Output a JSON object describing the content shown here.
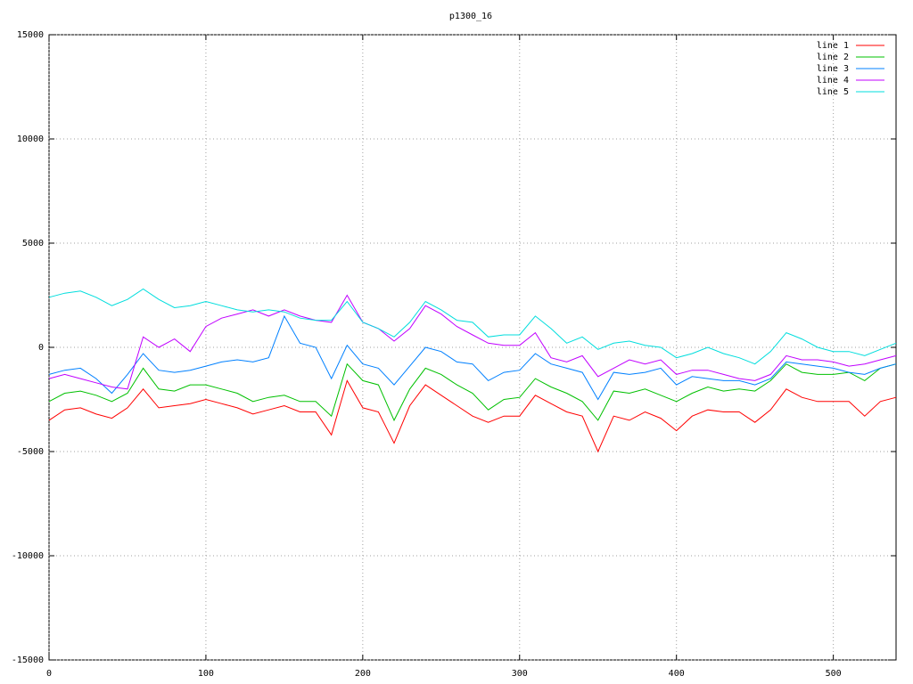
{
  "chart_data": {
    "type": "line",
    "title": "p1300_16",
    "x": [
      0,
      10,
      20,
      30,
      40,
      50,
      60,
      70,
      80,
      90,
      100,
      110,
      120,
      130,
      140,
      150,
      160,
      170,
      180,
      190,
      200,
      210,
      220,
      230,
      240,
      250,
      260,
      270,
      280,
      290,
      300,
      310,
      320,
      330,
      340,
      350,
      360,
      370,
      380,
      390,
      400,
      410,
      420,
      430,
      440,
      450,
      460,
      470,
      480,
      490,
      500,
      510,
      520,
      530,
      540
    ],
    "series": [
      {
        "name": "line 1",
        "color": "#ff0000",
        "values": [
          -3500,
          -3000,
          -2900,
          -3200,
          -3400,
          -2900,
          -2000,
          -2900,
          -2800,
          -2700,
          -2500,
          -2700,
          -2900,
          -3200,
          -3000,
          -2800,
          -3100,
          -3100,
          -4200,
          -1600,
          -2900,
          -3100,
          -4600,
          -2800,
          -1800,
          -2300,
          -2800,
          -3300,
          -3600,
          -3300,
          -3300,
          -2300,
          -2700,
          -3100,
          -3300,
          -5000,
          -3300,
          -3500,
          -3100,
          -3400,
          -4000,
          -3300,
          -3000,
          -3100,
          -3100,
          -3600,
          -3000,
          -2000,
          -2400,
          -2600,
          -2600,
          -2600,
          -3300,
          -2600,
          -2400
        ]
      },
      {
        "name": "line 2",
        "color": "#00c000",
        "values": [
          -2600,
          -2200,
          -2100,
          -2300,
          -2600,
          -2200,
          -1000,
          -2000,
          -2100,
          -1800,
          -1800,
          -2000,
          -2200,
          -2600,
          -2400,
          -2300,
          -2600,
          -2600,
          -3300,
          -800,
          -1600,
          -1800,
          -3500,
          -2000,
          -1000,
          -1300,
          -1800,
          -2200,
          -3000,
          -2500,
          -2400,
          -1500,
          -1900,
          -2200,
          -2600,
          -3500,
          -2100,
          -2200,
          -2000,
          -2300,
          -2600,
          -2200,
          -1900,
          -2100,
          -2000,
          -2100,
          -1600,
          -800,
          -1200,
          -1300,
          -1300,
          -1200,
          -1600,
          -1000,
          -800
        ]
      },
      {
        "name": "line 3",
        "color": "#0080ff",
        "values": [
          -1300,
          -1100,
          -1000,
          -1500,
          -2200,
          -1300,
          -300,
          -1100,
          -1200,
          -1100,
          -900,
          -700,
          -600,
          -700,
          -500,
          1500,
          200,
          0,
          -1500,
          100,
          -800,
          -1000,
          -1800,
          -900,
          0,
          -200,
          -700,
          -800,
          -1600,
          -1200,
          -1100,
          -300,
          -800,
          -1000,
          -1200,
          -2500,
          -1200,
          -1300,
          -1200,
          -1000,
          -1800,
          -1400,
          -1500,
          -1600,
          -1600,
          -1800,
          -1500,
          -700,
          -800,
          -900,
          -1000,
          -1200,
          -1300,
          -1000,
          -800
        ]
      },
      {
        "name": "line 4",
        "color": "#c000ff",
        "values": [
          -1500,
          -1300,
          -1500,
          -1700,
          -1900,
          -2000,
          500,
          0,
          400,
          -200,
          1000,
          1400,
          1600,
          1800,
          1500,
          1800,
          1500,
          1300,
          1200,
          2500,
          1200,
          900,
          300,
          900,
          2000,
          1600,
          1000,
          600,
          200,
          100,
          100,
          700,
          -500,
          -700,
          -400,
          -1400,
          -1000,
          -600,
          -800,
          -600,
          -1300,
          -1100,
          -1100,
          -1300,
          -1500,
          -1600,
          -1300,
          -400,
          -600,
          -600,
          -700,
          -900,
          -800,
          -600,
          -400
        ]
      },
      {
        "name": "line 5",
        "color": "#00dddd",
        "values": [
          2400,
          2600,
          2700,
          2400,
          2000,
          2300,
          2800,
          2300,
          1900,
          2000,
          2200,
          2000,
          1800,
          1700,
          1800,
          1700,
          1400,
          1300,
          1300,
          2200,
          1200,
          900,
          500,
          1200,
          2200,
          1800,
          1300,
          1200,
          500,
          600,
          600,
          1500,
          900,
          200,
          500,
          -100,
          200,
          300,
          100,
          0,
          -500,
          -300,
          0,
          -300,
          -500,
          -800,
          -200,
          700,
          400,
          0,
          -200,
          -200,
          -400,
          -100,
          200
        ]
      }
    ],
    "xlim": [
      0,
      540
    ],
    "ylim": [
      -15000,
      15000
    ],
    "xticks": [
      0,
      100,
      200,
      300,
      400,
      500
    ],
    "yticks": [
      -15000,
      -10000,
      -5000,
      0,
      5000,
      10000,
      15000
    ],
    "grid": true,
    "legend": "top-right"
  }
}
